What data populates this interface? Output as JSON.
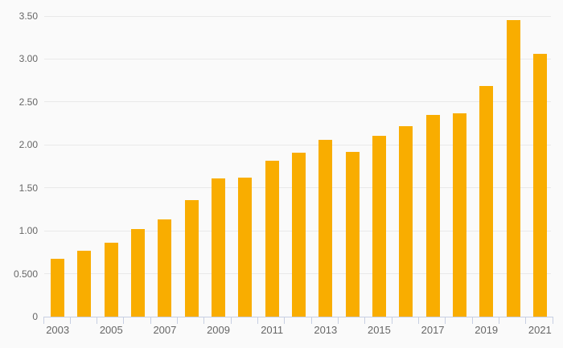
{
  "chart_data": {
    "type": "bar",
    "title": "",
    "xlabel": "",
    "ylabel": "",
    "categories": [
      "2003",
      "2004",
      "2005",
      "2006",
      "2007",
      "2008",
      "2009",
      "2010",
      "2011",
      "2012",
      "2013",
      "2014",
      "2015",
      "2016",
      "2017",
      "2018",
      "2019",
      "2020",
      "2021"
    ],
    "values": [
      0.67,
      0.77,
      0.86,
      1.02,
      1.13,
      1.36,
      1.61,
      1.62,
      1.82,
      1.91,
      2.06,
      1.92,
      2.11,
      2.22,
      2.35,
      2.37,
      2.69,
      3.45,
      3.06
    ],
    "ylim": [
      0,
      3.5
    ],
    "y_ticks": [
      {
        "value": 0.0,
        "label": "0"
      },
      {
        "value": 0.5,
        "label": "0.500"
      },
      {
        "value": 1.0,
        "label": "1.00"
      },
      {
        "value": 1.5,
        "label": "1.50"
      },
      {
        "value": 2.0,
        "label": "2.00"
      },
      {
        "value": 2.5,
        "label": "2.50"
      },
      {
        "value": 3.0,
        "label": "3.00"
      },
      {
        "value": 3.5,
        "label": "3.50"
      }
    ],
    "x_tick_labels_shown": [
      "2003",
      "2005",
      "2007",
      "2009",
      "2011",
      "2013",
      "2015",
      "2017",
      "2019",
      "2021"
    ],
    "grid": true,
    "legend_position": "none",
    "colors": {
      "bar": "#F9AD00",
      "background": "#FAFAFA",
      "gridline": "#E9E9E9",
      "axis_line": "#C7CFE2",
      "tick_label": "#666666"
    }
  }
}
